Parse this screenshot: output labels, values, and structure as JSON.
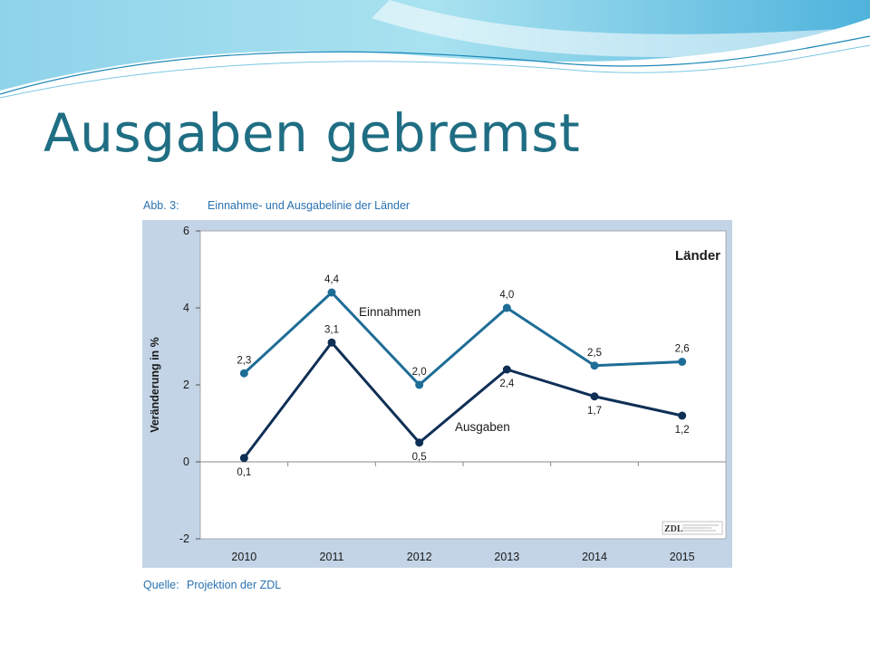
{
  "slide": {
    "title": "Ausgaben gebremst"
  },
  "colors": {
    "title": "#1f6e83",
    "plot_frame": "#c3d4e6",
    "einnahmen": "#1e6d97",
    "ausgaben": "#0f2f56",
    "caption": "#2a72b0"
  },
  "figure": {
    "caption_label": "Abb. 3:",
    "caption_text": "Einnahme- und Ausgabelinie der Länder",
    "source_label": "Quelle:",
    "source_text": "Projektion der ZDL",
    "corner_label": "Länder",
    "logo_text": "ZDL"
  },
  "chart_data": {
    "type": "line",
    "title": "Einnahme- und Ausgabelinie der Länder",
    "xlabel": "",
    "ylabel": "Veränderung in %",
    "categories": [
      "2010",
      "2011",
      "2012",
      "2013",
      "2014",
      "2015"
    ],
    "ylim": [
      -2,
      6
    ],
    "yticks": [
      "-2",
      "0",
      "2",
      "4",
      "6"
    ],
    "grid": false,
    "series": [
      {
        "name": "Einnahmen",
        "values": [
          2.3,
          4.4,
          2.0,
          4.0,
          2.5,
          2.6
        ],
        "labels": [
          "2,3",
          "4,4",
          "2,0",
          "4,0",
          "2,5",
          "2,6"
        ]
      },
      {
        "name": "Ausgaben",
        "values": [
          0.1,
          3.1,
          0.5,
          2.4,
          1.7,
          1.2
        ],
        "labels": [
          "0,1",
          "3,1",
          "0,5",
          "2,4",
          "1,7",
          "1,2"
        ]
      }
    ]
  }
}
